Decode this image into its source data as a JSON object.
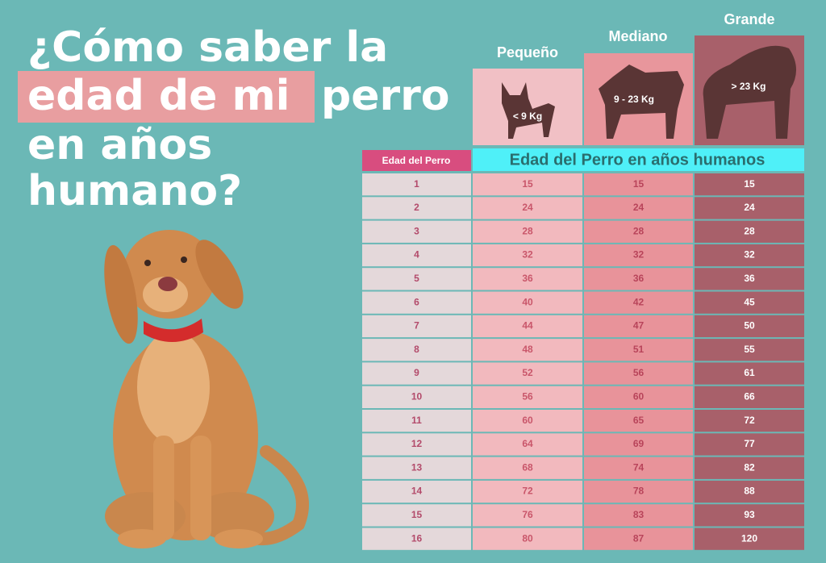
{
  "title_lines": [
    "¿Cómo saber la",
    "edad de mi",
    "perro",
    "en años",
    "humano?"
  ],
  "sizes": [
    {
      "name": "Pequeño",
      "weight": "< 9 Kg"
    },
    {
      "name": "Mediano",
      "weight": "9 - 23 Kg"
    },
    {
      "name": "Grande",
      "weight": "> 23 Kg"
    }
  ],
  "table": {
    "header_age": "Edad del Perro",
    "header_human": "Edad del Perro en años humanos",
    "rows": [
      [
        1,
        15,
        15,
        15
      ],
      [
        2,
        24,
        24,
        24
      ],
      [
        3,
        28,
        28,
        28
      ],
      [
        4,
        32,
        32,
        32
      ],
      [
        5,
        36,
        36,
        36
      ],
      [
        6,
        40,
        42,
        45
      ],
      [
        7,
        44,
        47,
        50
      ],
      [
        8,
        48,
        51,
        55
      ],
      [
        9,
        52,
        56,
        61
      ],
      [
        10,
        56,
        60,
        66
      ],
      [
        11,
        60,
        65,
        72
      ],
      [
        12,
        64,
        69,
        77
      ],
      [
        13,
        68,
        74,
        82
      ],
      [
        14,
        72,
        78,
        88
      ],
      [
        15,
        76,
        83,
        93
      ],
      [
        16,
        80,
        87,
        120
      ]
    ]
  }
}
